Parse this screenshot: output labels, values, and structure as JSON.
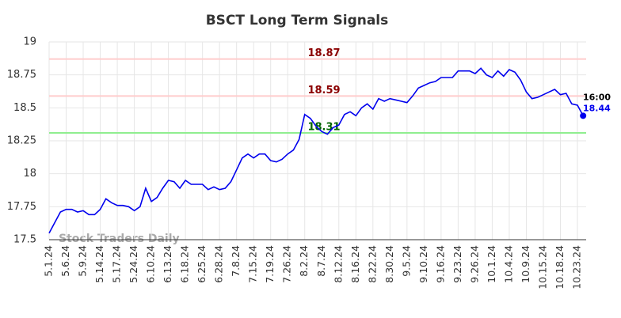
{
  "chart_data": {
    "type": "line",
    "title": "BSCT Long Term Signals",
    "categories": [
      "5.1.24",
      null,
      null,
      "5.6.24",
      null,
      null,
      "5.9.24",
      null,
      null,
      "5.14.24",
      null,
      null,
      "5.17.24",
      null,
      null,
      "5.24.24",
      null,
      null,
      "6.10.24",
      null,
      null,
      "6.13.24",
      null,
      null,
      "6.18.24",
      null,
      null,
      "6.25.24",
      null,
      null,
      "6.28.24",
      null,
      null,
      "7.8.24",
      null,
      null,
      "7.15.24",
      null,
      null,
      "7.19.24",
      null,
      null,
      "7.26.24",
      null,
      null,
      "8.2.24",
      null,
      null,
      "8.7.24",
      null,
      null,
      "8.12.24",
      null,
      null,
      "8.16.24",
      null,
      null,
      "8.22.24",
      null,
      null,
      "8.30.24",
      null,
      null,
      "9.5.24",
      null,
      null,
      "9.10.24",
      null,
      null,
      "9.16.24",
      null,
      null,
      "9.23.24",
      null,
      null,
      "9.26.24",
      null,
      null,
      "10.1.24",
      null,
      null,
      "10.4.24",
      null,
      null,
      "10.9.24",
      null,
      null,
      "10.15.24",
      null,
      null,
      "10.18.24",
      null,
      null,
      "10.23.24",
      null
    ],
    "values": [
      17.55,
      17.63,
      17.71,
      17.73,
      17.73,
      17.71,
      17.72,
      17.69,
      17.69,
      17.73,
      17.81,
      17.78,
      17.76,
      17.76,
      17.75,
      17.72,
      17.75,
      17.89,
      17.79,
      17.82,
      17.89,
      17.95,
      17.94,
      17.89,
      17.95,
      17.92,
      17.92,
      17.92,
      17.88,
      17.9,
      17.88,
      17.89,
      17.94,
      18.03,
      18.12,
      18.15,
      18.12,
      18.15,
      18.15,
      18.1,
      18.09,
      18.11,
      18.15,
      18.18,
      18.26,
      18.45,
      18.42,
      18.36,
      18.32,
      18.3,
      18.35,
      18.37,
      18.45,
      18.47,
      18.44,
      18.5,
      18.53,
      18.49,
      18.57,
      18.55,
      18.57,
      18.56,
      18.55,
      18.54,
      18.59,
      18.65,
      18.67,
      18.69,
      18.7,
      18.73,
      18.73,
      18.73,
      18.78,
      18.78,
      18.78,
      18.76,
      18.8,
      18.75,
      18.73,
      18.78,
      18.74,
      18.79,
      18.77,
      18.71,
      18.62,
      18.57,
      18.58,
      18.6,
      18.62,
      18.64,
      18.6,
      18.61,
      18.53,
      18.52,
      18.44
    ],
    "color": "#0000ee",
    "ylim": [
      17.5,
      19
    ],
    "yticks": [
      17.5,
      17.75,
      18,
      18.25,
      18.5,
      18.75,
      19
    ],
    "grid": true,
    "hlines": [
      {
        "value": 18.87,
        "color": "#ffcccc",
        "label_color": "#8b0000"
      },
      {
        "value": 18.59,
        "color": "#ffcccc",
        "label_color": "#8b0000"
      },
      {
        "value": 18.31,
        "color": "#90ee90",
        "label_color": "#006400"
      }
    ],
    "end_time": "16:00",
    "watermark": "Stock Traders Daily"
  }
}
